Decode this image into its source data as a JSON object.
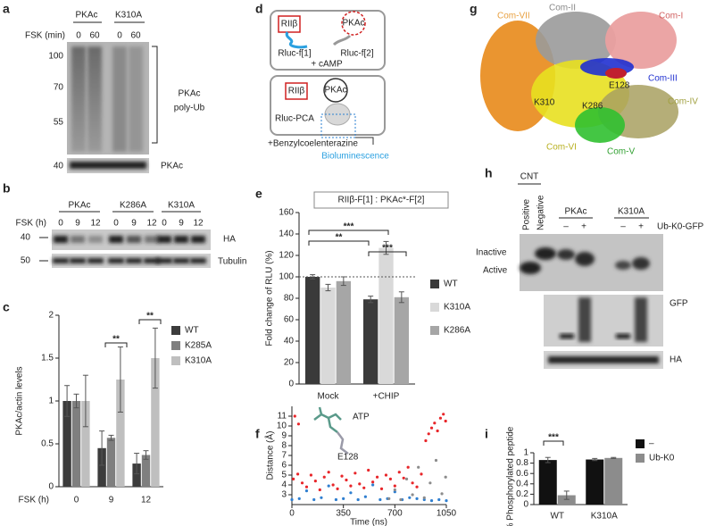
{
  "panel_labels": [
    "a",
    "b",
    "c",
    "d",
    "e",
    "f",
    "g",
    "h",
    "i"
  ],
  "panels": {
    "a": {
      "columns": [
        "PKAc",
        "K310A"
      ],
      "fsk_label": "FSK (min)",
      "lanes": [
        "0",
        "60",
        "0",
        "60"
      ],
      "markers": [
        "100",
        "70",
        "55",
        "40"
      ],
      "bracket_label": [
        "PKAc",
        "poly-Ub"
      ],
      "band_label": "PKAc"
    },
    "b": {
      "columns": [
        "PKAc",
        "K286A",
        "K310A"
      ],
      "fsk_label": "FSK (h)",
      "lanes": [
        "0",
        "9",
        "12",
        "0",
        "9",
        "12",
        "0",
        "9",
        "12"
      ],
      "markers": [
        "40",
        "50"
      ],
      "bands": [
        "HA",
        "Tubulin"
      ]
    },
    "d": {
      "top": {
        "subunit": "RIIβ",
        "partner": "PKAc",
        "frag1": "Rluc-f[1]",
        "frag2": "Rluc-f[2]",
        "stimulus": "+ cAMP"
      },
      "bottom": {
        "subunit": "RIIβ",
        "partner": "PKAc",
        "complex": "Rluc-PCA",
        "substrate": "+Benzylcoelenterazine",
        "readout": "Bioluminescence"
      }
    },
    "g": {
      "labels": [
        "Com-VII",
        "Com-I",
        "Com-II",
        "Com-III",
        "E128",
        "K310",
        "K286",
        "Com-IV",
        "Com-VI",
        "Com-V"
      ]
    },
    "h": {
      "cnt": "CNT",
      "controls": [
        "Positive",
        "Negative"
      ],
      "columns": [
        "PKAc",
        "K310A"
      ],
      "signs": [
        "–",
        "+",
        "–",
        "+"
      ],
      "construct": "Ub-K0-GFP",
      "states": [
        "Inactive",
        "Active"
      ],
      "bands": [
        "GFP",
        "HA"
      ]
    }
  },
  "chart_data": [
    {
      "type": "bar",
      "y_label": "PKAc/actin levels",
      "x_label": "FSK (h)",
      "categories": [
        "0",
        "9",
        "12"
      ],
      "series": [
        {
          "name": "WT",
          "color": "#3c3c3c",
          "values": [
            1.0,
            0.45,
            0.27
          ],
          "errors": [
            0.18,
            0.2,
            0.12
          ]
        },
        {
          "name": "K285A",
          "color": "#7f7f7f",
          "values": [
            1.0,
            0.57,
            0.37
          ],
          "errors": [
            0.08,
            0.03,
            0.05
          ]
        },
        {
          "name": "K310A",
          "color": "#bfbfbf",
          "values": [
            1.0,
            1.25,
            1.5
          ],
          "errors": [
            0.3,
            0.38,
            0.35
          ]
        }
      ],
      "ylim": [
        0,
        2
      ],
      "yticks": [
        0,
        0.5,
        1,
        1.5,
        2
      ],
      "annotations": [
        "**",
        "**"
      ]
    },
    {
      "type": "bar",
      "title": "RIIβ-F[1] : PKAc*-F[2]",
      "y_label": "Fold change of RLU (%)",
      "categories": [
        "Mock",
        "+CHIP"
      ],
      "series": [
        {
          "name": "WT",
          "color": "#3a3a3a",
          "values": [
            100,
            79
          ],
          "errors": [
            2,
            3
          ]
        },
        {
          "name": "K310A",
          "color": "#d9d9d9",
          "values": [
            90,
            127
          ],
          "errors": [
            3,
            6
          ]
        },
        {
          "name": "K286A",
          "color": "#a6a6a6",
          "values": [
            96,
            81
          ],
          "errors": [
            4,
            5
          ]
        }
      ],
      "ylim": [
        0,
        160
      ],
      "yticks": [
        0,
        20,
        40,
        60,
        80,
        100,
        120,
        140,
        160
      ],
      "reference_line": 100,
      "annotations": [
        "***",
        "**",
        "***"
      ]
    },
    {
      "type": "scatter",
      "x_label": "Time (ns)",
      "y_label": "Distance (Å)",
      "series": [
        {
          "color": "#e8262a",
          "x": [
            10,
            20,
            40,
            45,
            70,
            100,
            130,
            160,
            190,
            220,
            250,
            280,
            310,
            340,
            370,
            400,
            430,
            460,
            490,
            520,
            550,
            580,
            610,
            640,
            670,
            700,
            730,
            760,
            790,
            820,
            850,
            880,
            910,
            930,
            950,
            970,
            990,
            1010,
            1030,
            1045
          ],
          "values": [
            4.6,
            11.0,
            5.1,
            10.2,
            4.2,
            3.8,
            5.0,
            4.4,
            3.5,
            4.8,
            5.3,
            4.0,
            3.6,
            4.9,
            4.5,
            3.9,
            5.2,
            4.1,
            3.7,
            5.5,
            4.3,
            4.8,
            3.6,
            5.0,
            4.6,
            3.9,
            5.3,
            4.7,
            5.8,
            4.2,
            3.8,
            5.1,
            8.5,
            9.2,
            9.8,
            10.3,
            9.5,
            10.8,
            11.2,
            10.5
          ]
        },
        {
          "color": "#2f7fd0",
          "x": [
            0,
            50,
            100,
            150,
            200,
            250,
            300,
            350,
            400,
            450,
            500,
            550,
            600,
            650,
            700,
            750,
            800,
            850,
            900,
            950,
            1000,
            1050
          ],
          "values": [
            2.5,
            2.6,
            3.4,
            2.5,
            2.7,
            3.9,
            2.5,
            2.6,
            3.2,
            2.5,
            2.8,
            4.0,
            2.5,
            2.6,
            3.3,
            2.5,
            2.7,
            2.6,
            2.5,
            2.4,
            2.5,
            2.4
          ]
        },
        {
          "color": "#8c8c8c",
          "x": [
            660,
            700,
            740,
            780,
            820,
            860,
            900,
            940,
            980,
            1020,
            1045
          ],
          "values": [
            2.6,
            3.5,
            2.5,
            4.6,
            3.0,
            5.8,
            2.7,
            4.2,
            6.5,
            3.1,
            4.8
          ]
        }
      ],
      "xlim": [
        0,
        1050
      ],
      "xticks": [
        0,
        350,
        700,
        1050
      ],
      "ylim": [
        2,
        12
      ],
      "yticks": [
        3,
        4,
        5,
        6,
        7,
        8,
        9,
        10,
        11
      ],
      "annotations": [
        "ATP",
        "E128"
      ]
    },
    {
      "type": "bar",
      "y_label": "% Phosphorylated peptide",
      "categories": [
        "WT",
        "K310A"
      ],
      "series": [
        {
          "name": "–",
          "color": "#111111",
          "values": [
            0.86,
            0.87
          ],
          "errors": [
            0.05,
            0.02
          ]
        },
        {
          "name": "Ub-K0",
          "color": "#8c8c8c",
          "values": [
            0.18,
            0.9
          ],
          "errors": [
            0.08,
            0.01
          ]
        }
      ],
      "ylim": [
        0,
        1
      ],
      "yticks": [
        0,
        0.2,
        0.4,
        0.6,
        0.8,
        1
      ],
      "annotations": [
        "***"
      ]
    }
  ]
}
